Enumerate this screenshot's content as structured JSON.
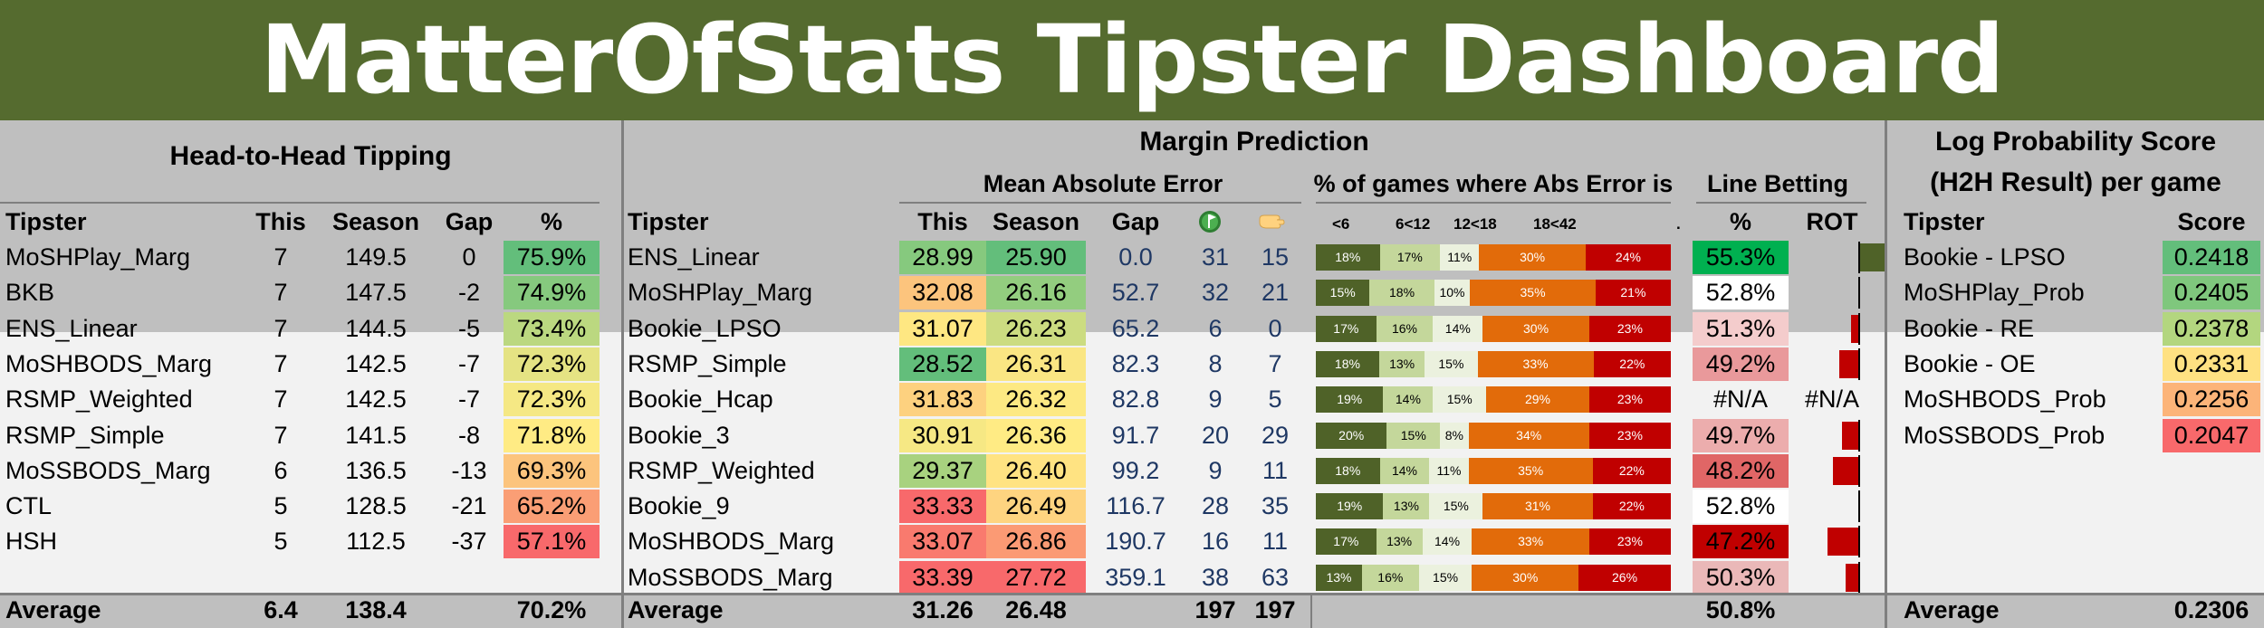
{
  "title": "MatterOfStats Tipster Dashboard",
  "h2h": {
    "section_title": "Head-to-Head Tipping",
    "headers": {
      "tipster": "Tipster",
      "this": "This",
      "season": "Season",
      "gap": "Gap",
      "pct": "%"
    },
    "rows": [
      {
        "tipster": "MoSHPlay_Marg",
        "this": "7",
        "season": "149.5",
        "gap": "0",
        "pct": "75.9%",
        "color": "#63be7b"
      },
      {
        "tipster": "BKB",
        "this": "7",
        "season": "147.5",
        "gap": "-2",
        "pct": "74.9%",
        "color": "#86c97e"
      },
      {
        "tipster": "ENS_Linear",
        "this": "7",
        "season": "144.5",
        "gap": "-5",
        "pct": "73.4%",
        "color": "#bbd880"
      },
      {
        "tipster": "MoSHBODS_Marg",
        "this": "7",
        "season": "142.5",
        "gap": "-7",
        "pct": "72.3%",
        "color": "#e5e383"
      },
      {
        "tipster": "RSMP_Weighted",
        "this": "7",
        "season": "142.5",
        "gap": "-7",
        "pct": "72.3%",
        "color": "#f5e884"
      },
      {
        "tipster": "RSMP_Simple",
        "this": "7",
        "season": "141.5",
        "gap": "-8",
        "pct": "71.8%",
        "color": "#ffeb84"
      },
      {
        "tipster": "MoSSBODS_Marg",
        "this": "6",
        "season": "136.5",
        "gap": "-13",
        "pct": "69.3%",
        "color": "#fcc47d"
      },
      {
        "tipster": "CTL",
        "this": "5",
        "season": "128.5",
        "gap": "-21",
        "pct": "65.2%",
        "color": "#fa9e75"
      },
      {
        "tipster": "HSH",
        "this": "5",
        "season": "112.5",
        "gap": "-37",
        "pct": "57.1%",
        "color": "#f8696b"
      }
    ],
    "footer": {
      "label": "Average",
      "this": "6.4",
      "season": "138.4",
      "pct": "70.2%"
    }
  },
  "margin": {
    "section_title": "Margin Prediction",
    "mae_title": "Mean Absolute Error",
    "abs_title": "% of games where Abs Error is",
    "line_title": "Line Betting",
    "headers": {
      "tipster": "Tipster",
      "this": "This",
      "season": "Season",
      "gap": "Gap",
      "e1": "<6",
      "e2": "6<12",
      "e3": "12<18",
      "e4": "18<42",
      "e5": ".",
      "pct": "%",
      "rot": "ROT"
    },
    "icons": {
      "col_a": "flag-icon",
      "col_b": "hand-icon"
    },
    "seg_colors": [
      "#4f6228",
      "#c4d79b",
      "#ebf1de",
      "#e26b0a",
      "#c00000"
    ],
    "rows": [
      {
        "tipster": "ENS_Linear",
        "this": "28.99",
        "this_color": "#86c97e",
        "season": "25.90",
        "season_color": "#63be7b",
        "gap": "0.0",
        "a": "31",
        "b": "15",
        "errs": [
          18,
          17,
          11,
          30,
          24
        ],
        "line_pct": "55.3%",
        "line_color": "#00b050",
        "rot": 0.25
      },
      {
        "tipster": "MoSHPlay_Marg",
        "this": "32.08",
        "this_color": "#fcc47d",
        "season": "26.16",
        "season_color": "#93cd7f",
        "gap": "52.7",
        "a": "32",
        "b": "21",
        "errs": [
          15,
          18,
          10,
          35,
          21
        ],
        "line_pct": "52.8%",
        "line_color": "#ffffff",
        "rot": 0.0
      },
      {
        "tipster": "Bookie_LPSO",
        "this": "31.07",
        "this_color": "#fee782",
        "season": "26.23",
        "season_color": "#ccdc81",
        "gap": "65.2",
        "a": "6",
        "b": "0",
        "errs": [
          17,
          16,
          14,
          30,
          23
        ],
        "line_pct": "51.3%",
        "line_color": "#f4cccc",
        "rot": -0.06
      },
      {
        "tipster": "RSMP_Simple",
        "this": "28.52",
        "this_color": "#63be7b",
        "season": "26.31",
        "season_color": "#fae683",
        "gap": "82.3",
        "a": "8",
        "b": "7",
        "errs": [
          18,
          13,
          15,
          33,
          22
        ],
        "line_pct": "49.2%",
        "line_color": "#e9999b",
        "rot": -0.15
      },
      {
        "tipster": "Bookie_Hcap",
        "this": "31.83",
        "this_color": "#fdd17f",
        "season": "26.32",
        "season_color": "#fde983",
        "gap": "82.8",
        "a": "9",
        "b": "5",
        "errs": [
          19,
          14,
          15,
          29,
          23
        ],
        "line_pct": "#N/A",
        "line_color": "none",
        "rot": null,
        "rot_text": "#N/A"
      },
      {
        "tipster": "Bookie_3",
        "this": "30.91",
        "this_color": "#f6e884",
        "season": "26.36",
        "season_color": "#ffeb84",
        "gap": "91.7",
        "a": "20",
        "b": "29",
        "errs": [
          20,
          15,
          8,
          34,
          23
        ],
        "line_pct": "49.7%",
        "line_color": "#ecadad",
        "rot": -0.13
      },
      {
        "tipster": "RSMP_Weighted",
        "this": "29.37",
        "this_color": "#a8d27f",
        "season": "26.40",
        "season_color": "#ffe382",
        "gap": "99.2",
        "a": "9",
        "b": "11",
        "errs": [
          18,
          14,
          11,
          35,
          22
        ],
        "line_pct": "48.2%",
        "line_color": "#e06666",
        "rot": -0.2
      },
      {
        "tipster": "Bookie_9",
        "this": "33.33",
        "this_color": "#f8696b",
        "season": "26.49",
        "season_color": "#fed480",
        "gap": "116.7",
        "a": "28",
        "b": "35",
        "errs": [
          19,
          13,
          15,
          31,
          22
        ],
        "line_pct": "52.8%",
        "line_color": "#ffffff",
        "rot": 0.0
      },
      {
        "tipster": "MoSHBODS_Marg",
        "this": "33.07",
        "this_color": "#f97a6e",
        "season": "26.86",
        "season_color": "#fb9a74",
        "gap": "190.7",
        "a": "16",
        "b": "11",
        "errs": [
          17,
          13,
          14,
          33,
          23
        ],
        "line_pct": "47.2%",
        "line_color": "#c00000",
        "rot": -0.24
      },
      {
        "tipster": "MoSSBODS_Marg",
        "this": "33.39",
        "this_color": "#f8696b",
        "season": "27.72",
        "season_color": "#f8696b",
        "gap": "359.1",
        "a": "38",
        "b": "63",
        "errs": [
          13,
          16,
          15,
          30,
          26
        ],
        "line_pct": "50.3%",
        "line_color": "#eab8b8",
        "rot": -0.1
      }
    ],
    "footer": {
      "label": "Average",
      "this": "31.26",
      "season": "26.48",
      "a": "197",
      "b": "197",
      "pct": "50.8%"
    }
  },
  "lps": {
    "section_title_1": "Log Probability Score",
    "section_title_2": "(H2H Result) per game",
    "headers": {
      "tipster": "Tipster",
      "score": "Score"
    },
    "rows": [
      {
        "tipster": "Bookie - LPSO",
        "score": "0.2418",
        "color": "#63be7b"
      },
      {
        "tipster": "MoSHPlay_Prob",
        "score": "0.2405",
        "color": "#7fc77d"
      },
      {
        "tipster": "Bookie - RE",
        "score": "0.2378",
        "color": "#b3d67f"
      },
      {
        "tipster": "Bookie - OE",
        "score": "0.2331",
        "color": "#ffe182"
      },
      {
        "tipster": "MoSHBODS_Prob",
        "score": "0.2256",
        "color": "#fcb479"
      },
      {
        "tipster": "MoSSBODS_Prob",
        "score": "0.2047",
        "color": "#f8696b"
      }
    ],
    "footer": {
      "label": "Average",
      "score": "0.2306"
    }
  }
}
